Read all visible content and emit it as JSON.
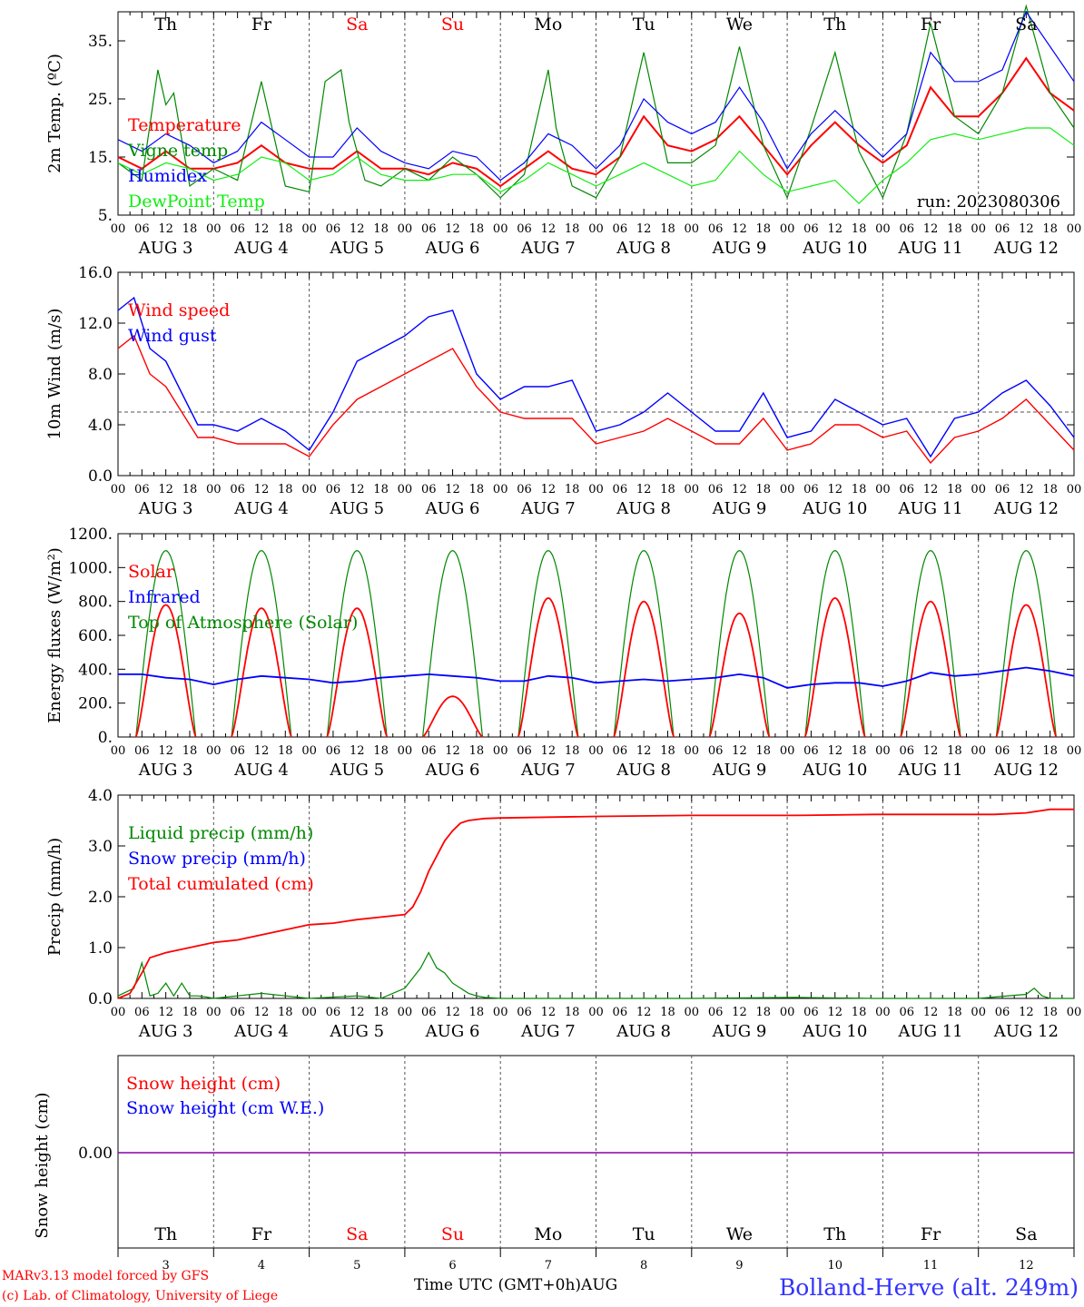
{
  "colors": {
    "red": "#ff0000",
    "blue": "#0000ff",
    "green": "#008800",
    "lightgreen": "#11ee11",
    "purple": "#8800aa",
    "grid": "#555555"
  },
  "days": {
    "weekday": [
      "Th",
      "Fr",
      "Sa",
      "Su",
      "Mo",
      "Tu",
      "We",
      "Th",
      "Fr",
      "Sa"
    ],
    "weekend": [
      false,
      false,
      true,
      true,
      false,
      false,
      false,
      false,
      false,
      false
    ],
    "dates": [
      "AUG  3",
      "AUG  4",
      "AUG  5",
      "AUG  6",
      "AUG  7",
      "AUG  8",
      "AUG  9",
      "AUG 10",
      "AUG 11",
      "AUG 12"
    ],
    "day_numbers": [
      "3",
      "4",
      "5",
      "6",
      "7",
      "8",
      "9",
      "10",
      "11",
      "12"
    ],
    "hour_labels": [
      "00",
      "06",
      "12",
      "18"
    ],
    "final_hour_label": "00"
  },
  "footer": {
    "model": "MARv3.13 model forced by GFS",
    "copyright": "(c) Lab. of Climatology, University of Liege",
    "time_label": "Time UTC (GMT+0h)AUG",
    "station": "Bolland-Herve (alt. 249m)"
  },
  "chart_data": [
    {
      "id": "temp",
      "type": "line",
      "ylabel": "2m Temp. (ºC)",
      "ylim": [
        5,
        40
      ],
      "yticks": [
        5,
        15,
        25,
        35
      ],
      "ytick_labels": [
        "5.",
        "15.",
        "25.",
        "35."
      ],
      "run_label": "run: 2023080306",
      "x_unit": "hours since AUG 3 00 UTC",
      "series": [
        {
          "name": "Temperature",
          "color": "#ff0000",
          "x": [
            0,
            6,
            12,
            18,
            24,
            30,
            36,
            42,
            48,
            54,
            60,
            66,
            72,
            78,
            84,
            90,
            96,
            102,
            108,
            114,
            120,
            126,
            132,
            138,
            144,
            150,
            156,
            162,
            168,
            174,
            180,
            186,
            192,
            198,
            204,
            210,
            216,
            222,
            228,
            234,
            240
          ],
          "y": [
            15,
            13,
            16,
            13,
            13,
            14,
            17,
            14,
            13,
            13,
            16,
            13,
            13,
            12,
            14,
            13,
            10,
            13,
            16,
            13,
            12,
            15,
            22,
            17,
            16,
            18,
            22,
            17,
            12,
            17,
            21,
            17,
            14,
            17,
            27,
            22,
            22,
            26,
            32,
            26,
            23
          ]
        },
        {
          "name": "Vigne temp",
          "color": "#008800",
          "x": [
            0,
            6,
            10,
            12,
            14,
            18,
            24,
            30,
            36,
            38,
            42,
            48,
            52,
            56,
            58,
            62,
            66,
            72,
            78,
            84,
            90,
            96,
            102,
            108,
            110,
            114,
            120,
            126,
            132,
            138,
            144,
            150,
            156,
            162,
            168,
            174,
            180,
            186,
            192,
            198,
            204,
            210,
            216,
            222,
            228,
            234,
            240
          ],
          "y": [
            14,
            11,
            30,
            24,
            26,
            10,
            13,
            11,
            28,
            22,
            10,
            9,
            28,
            30,
            21,
            11,
            10,
            13,
            11,
            15,
            12,
            8,
            12,
            30,
            20,
            10,
            8,
            15,
            33,
            14,
            14,
            17,
            34,
            17,
            8,
            20,
            33,
            16,
            8,
            19,
            38,
            22,
            19,
            26,
            41,
            26,
            20
          ]
        },
        {
          "name": "Humidex",
          "color": "#0000ff",
          "x": [
            0,
            6,
            12,
            18,
            24,
            30,
            36,
            42,
            48,
            54,
            60,
            66,
            72,
            78,
            84,
            90,
            96,
            102,
            108,
            114,
            120,
            126,
            132,
            138,
            144,
            150,
            156,
            162,
            168,
            174,
            180,
            186,
            192,
            198,
            204,
            210,
            216,
            222,
            228,
            234,
            240
          ],
          "y": [
            18,
            16,
            19,
            17,
            14,
            16,
            21,
            18,
            15,
            15,
            20,
            16,
            14,
            13,
            16,
            15,
            11,
            14,
            19,
            17,
            13,
            17,
            25,
            21,
            19,
            21,
            27,
            21,
            13,
            19,
            23,
            19,
            15,
            19,
            33,
            28,
            28,
            30,
            40,
            34,
            28
          ]
        },
        {
          "name": "DewPoint Temp",
          "color": "#11ee11",
          "x": [
            0,
            6,
            12,
            18,
            24,
            30,
            36,
            42,
            48,
            54,
            60,
            66,
            72,
            78,
            84,
            90,
            96,
            102,
            108,
            114,
            120,
            126,
            132,
            138,
            144,
            150,
            156,
            162,
            168,
            174,
            180,
            186,
            192,
            198,
            204,
            210,
            216,
            222,
            228,
            234,
            240
          ],
          "y": [
            14,
            12,
            14,
            13,
            11,
            12,
            15,
            14,
            11,
            12,
            15,
            12,
            11,
            11,
            12,
            12,
            9,
            11,
            14,
            12,
            10,
            12,
            14,
            12,
            10,
            11,
            16,
            12,
            9,
            10,
            11,
            7,
            11,
            14,
            18,
            19,
            18,
            19,
            20,
            20,
            17
          ]
        }
      ]
    },
    {
      "id": "wind",
      "type": "line",
      "ylabel": "10m Wind (m/s)",
      "ylim": [
        0,
        16
      ],
      "yticks": [
        0,
        4,
        8,
        12,
        16
      ],
      "ytick_labels": [
        "0.0",
        "4.0",
        "8.0",
        "12.0",
        "16.0"
      ],
      "reference_line": 5,
      "x_unit": "hours since AUG 3 00 UTC",
      "series": [
        {
          "name": "Wind speed",
          "color": "#ff0000",
          "x": [
            0,
            4,
            8,
            12,
            16,
            20,
            24,
            30,
            36,
            42,
            48,
            54,
            60,
            66,
            72,
            78,
            84,
            90,
            96,
            102,
            108,
            114,
            120,
            126,
            132,
            138,
            144,
            150,
            156,
            162,
            168,
            174,
            180,
            186,
            192,
            198,
            204,
            210,
            216,
            222,
            228,
            234,
            240
          ],
          "y": [
            10,
            11,
            8,
            7,
            5,
            3,
            3,
            2.5,
            2.5,
            2.5,
            1.5,
            4,
            6,
            7,
            8,
            9,
            10,
            7,
            5,
            4.5,
            4.5,
            4.5,
            2.5,
            3,
            3.5,
            4.5,
            3.5,
            2.5,
            2.5,
            4.5,
            2,
            2.5,
            4,
            4,
            3,
            3.5,
            1,
            3,
            3.5,
            4.5,
            6,
            4,
            2
          ]
        },
        {
          "name": "Wind gust",
          "color": "#0000ff",
          "x": [
            0,
            4,
            8,
            12,
            16,
            20,
            24,
            30,
            36,
            42,
            48,
            54,
            60,
            66,
            72,
            78,
            84,
            90,
            96,
            102,
            108,
            114,
            120,
            126,
            132,
            138,
            144,
            150,
            156,
            162,
            168,
            174,
            180,
            186,
            192,
            198,
            204,
            210,
            216,
            222,
            228,
            234,
            240
          ],
          "y": [
            13,
            14,
            10,
            9,
            6.5,
            4,
            4,
            3.5,
            4.5,
            3.5,
            2,
            5,
            9,
            10,
            11,
            12.5,
            13,
            8,
            6,
            7,
            7,
            7.5,
            3.5,
            4,
            5,
            6.5,
            5,
            3.5,
            3.5,
            6.5,
            3,
            3.5,
            6,
            5,
            4,
            4.5,
            1.5,
            4.5,
            5,
            6.5,
            7.5,
            5.5,
            3
          ]
        }
      ]
    },
    {
      "id": "energy",
      "type": "line",
      "ylabel": "Energy fluxes (W/m²)",
      "ylim": [
        0,
        1200
      ],
      "yticks": [
        0,
        200,
        400,
        600,
        800,
        1000,
        1200
      ],
      "ytick_labels": [
        "0.",
        "200.",
        "400.",
        "600.",
        "800.",
        "1000.",
        "1200."
      ],
      "x_unit": "hours since AUG 3 00 UTC",
      "solar_peaks": [
        780,
        760,
        760,
        240,
        820,
        800,
        730,
        820,
        800,
        780
      ],
      "toa_peak": 1100,
      "daylight_hours": [
        4.5,
        19.5
      ],
      "series": [
        {
          "name": "Solar",
          "color": "#ff0000"
        },
        {
          "name": "Infrared",
          "color": "#0000ff",
          "x": [
            0,
            6,
            12,
            18,
            24,
            30,
            36,
            42,
            48,
            54,
            60,
            66,
            72,
            78,
            84,
            90,
            96,
            102,
            108,
            114,
            120,
            126,
            132,
            138,
            144,
            150,
            156,
            162,
            168,
            174,
            180,
            186,
            192,
            198,
            204,
            210,
            216,
            222,
            228,
            234,
            240
          ],
          "y": [
            370,
            370,
            350,
            340,
            310,
            340,
            360,
            350,
            340,
            320,
            330,
            350,
            360,
            370,
            360,
            350,
            330,
            330,
            360,
            350,
            320,
            330,
            340,
            330,
            340,
            350,
            370,
            350,
            290,
            310,
            320,
            320,
            300,
            330,
            380,
            360,
            370,
            390,
            410,
            390,
            360
          ]
        },
        {
          "name": "Top of Atmosphere (Solar)",
          "color": "#008800"
        }
      ]
    },
    {
      "id": "precip",
      "type": "line",
      "ylabel": "Precip (mm/h)",
      "ylim": [
        0,
        4
      ],
      "yticks": [
        0,
        1,
        2,
        3,
        4
      ],
      "ytick_labels": [
        "0.0",
        "1.0",
        "2.0",
        "3.0",
        "4.0"
      ],
      "x_unit": "hours since AUG 3 00 UTC",
      "series": [
        {
          "name": "Liquid precip (mm/h)",
          "color": "#008800",
          "x": [
            0,
            4,
            6,
            8,
            10,
            12,
            14,
            16,
            18,
            20,
            22,
            24,
            30,
            36,
            42,
            48,
            60,
            66,
            72,
            76,
            78,
            80,
            82,
            84,
            86,
            88,
            90,
            92,
            94,
            96,
            120,
            144,
            170,
            190,
            216,
            228,
            230,
            232,
            234,
            240
          ],
          "y": [
            0.05,
            0.2,
            0.7,
            0.05,
            0.1,
            0.3,
            0.05,
            0.3,
            0.05,
            0.05,
            0.03,
            0.0,
            0.05,
            0.1,
            0.05,
            0.0,
            0.05,
            0.0,
            0.2,
            0.6,
            0.9,
            0.6,
            0.5,
            0.3,
            0.2,
            0.1,
            0.05,
            0.02,
            0.01,
            0.0,
            0.0,
            0.0,
            0.02,
            0.0,
            0.0,
            0.08,
            0.2,
            0.05,
            0.0,
            0.0
          ]
        },
        {
          "name": "Snow precip (mm/h)",
          "color": "#0000ff"
        },
        {
          "name": "Total cumulated (cm)",
          "color": "#ff0000",
          "x": [
            0,
            3,
            6,
            8,
            12,
            18,
            24,
            30,
            36,
            42,
            48,
            54,
            60,
            66,
            72,
            74,
            76,
            78,
            80,
            82,
            84,
            86,
            88,
            90,
            92,
            96,
            120,
            144,
            170,
            190,
            220,
            228,
            234,
            240
          ],
          "y": [
            0.0,
            0.1,
            0.5,
            0.8,
            0.9,
            1.0,
            1.1,
            1.15,
            1.25,
            1.35,
            1.45,
            1.48,
            1.55,
            1.6,
            1.65,
            1.8,
            2.1,
            2.5,
            2.8,
            3.1,
            3.3,
            3.45,
            3.5,
            3.52,
            3.54,
            3.55,
            3.58,
            3.6,
            3.6,
            3.62,
            3.62,
            3.65,
            3.72,
            3.72
          ]
        }
      ]
    },
    {
      "id": "snow",
      "type": "line",
      "ylabel": "Snow height (cm)",
      "yticks": [
        0
      ],
      "ytick_labels": [
        "0.00"
      ],
      "x_unit": "hours since AUG 3 00 UTC",
      "series": [
        {
          "name": "Snow height (cm)",
          "color": "#ff0000",
          "x": [
            0,
            240
          ],
          "y": [
            0,
            0
          ]
        },
        {
          "name": "Snow height (cm W.E.)",
          "color": "#0000ff",
          "x": [
            0,
            240
          ],
          "y": [
            0,
            0
          ]
        }
      ]
    }
  ]
}
